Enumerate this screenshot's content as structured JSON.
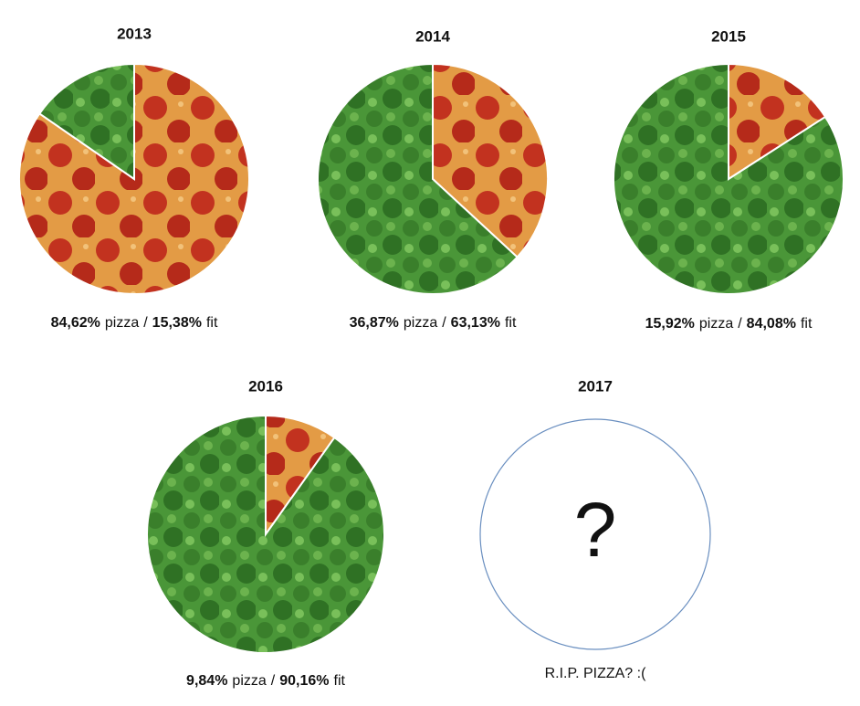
{
  "chart_data": [
    {
      "type": "pie",
      "title": "2013",
      "categories": [
        "pizza",
        "fit"
      ],
      "values": [
        84.62,
        15.38
      ],
      "value_labels": [
        "84,62%",
        "15,38%"
      ],
      "separator": "/",
      "colors": [
        "#e39b45",
        "#4a9638"
      ]
    },
    {
      "type": "pie",
      "title": "2014",
      "categories": [
        "pizza",
        "fit"
      ],
      "values": [
        36.87,
        63.13
      ],
      "value_labels": [
        "36,87%",
        "63,13%"
      ],
      "separator": "/",
      "colors": [
        "#e39b45",
        "#4a9638"
      ]
    },
    {
      "type": "pie",
      "title": "2015",
      "categories": [
        "pizza",
        "fit"
      ],
      "values": [
        15.92,
        84.08
      ],
      "value_labels": [
        "15,92%",
        "84,08%"
      ],
      "separator": "/",
      "colors": [
        "#e39b45",
        "#4a9638"
      ]
    },
    {
      "type": "pie",
      "title": "2016",
      "categories": [
        "pizza",
        "fit"
      ],
      "values": [
        9.84,
        90.16
      ],
      "value_labels": [
        "9,84%",
        "90,16%"
      ],
      "separator": "/",
      "colors": [
        "#e39b45",
        "#4a9638"
      ]
    },
    {
      "type": "placeholder",
      "title": "2017",
      "center_text": "?",
      "caption": "R.I.P. PIZZA? :(",
      "color": "#6a8fc0"
    }
  ]
}
